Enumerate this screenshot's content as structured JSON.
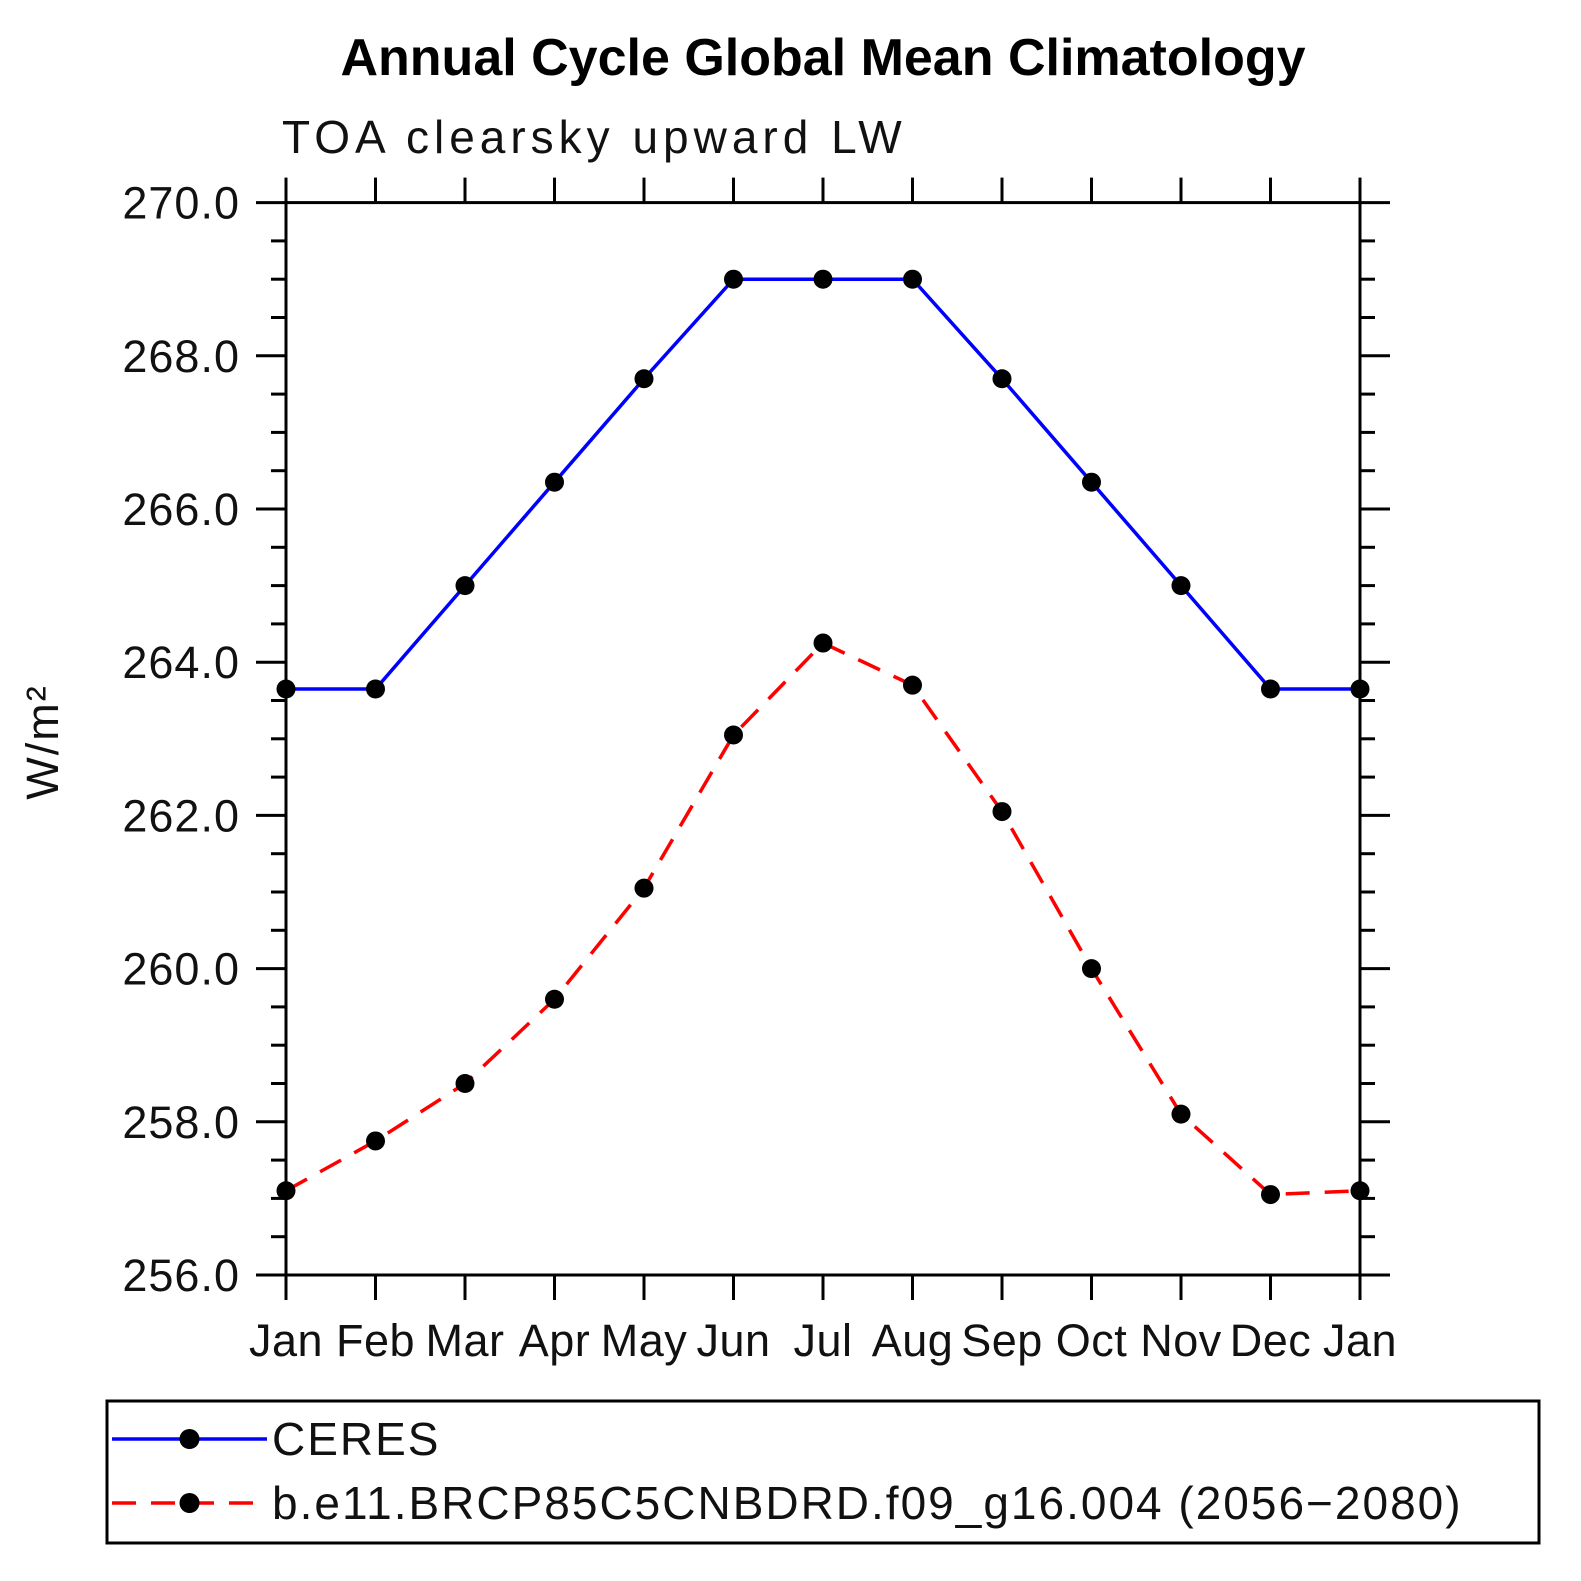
{
  "chart_data": {
    "type": "line",
    "title": "Annual Cycle Global Mean Climatology",
    "subtitle": "TOA clearsky upward LW",
    "ylabel": "W/m²",
    "xlabel": "",
    "categories": [
      "Jan",
      "Feb",
      "Mar",
      "Apr",
      "May",
      "Jun",
      "Jul",
      "Aug",
      "Sep",
      "Oct",
      "Nov",
      "Dec",
      "Jan"
    ],
    "series": [
      {
        "name": "CERES",
        "color": "#0000ff",
        "line_style": "solid",
        "marker": "filled-circle",
        "marker_color": "#000000",
        "values": [
          263.65,
          263.65,
          265.0,
          266.35,
          267.7,
          269.0,
          269.0,
          269.0,
          267.7,
          266.35,
          265.0,
          263.65,
          263.65
        ]
      },
      {
        "name": "b.e11.BRCP85C5CNBDRD.f09_g16.004 (2056−2080)",
        "color": "#ff0000",
        "line_style": "dashed",
        "marker": "filled-circle",
        "marker_color": "#000000",
        "values": [
          257.1,
          257.75,
          258.5,
          259.6,
          261.05,
          263.05,
          264.25,
          263.7,
          262.05,
          260.0,
          258.1,
          257.05,
          257.1
        ]
      }
    ],
    "ylim": [
      256.0,
      270.0
    ],
    "y_major_step": 2.0,
    "y_minor_step": 0.5,
    "y_tick_labels": [
      "256.0",
      "258.0",
      "260.0",
      "262.0",
      "264.0",
      "266.0",
      "268.0",
      "270.0"
    ],
    "grid": false,
    "legend_position": "bottom-box"
  }
}
